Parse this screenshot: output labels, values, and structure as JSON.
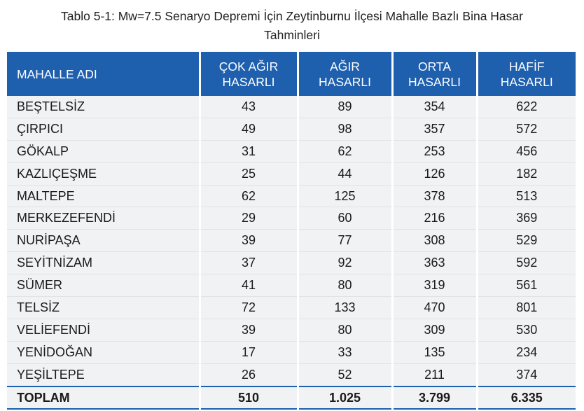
{
  "caption": {
    "line1": "Tablo 5-1: Mw=7.5 Senaryo Depremi İçin Zeytinburnu İlçesi Mahalle Bazlı Bina Hasar",
    "line2": "Tahminleri"
  },
  "table": {
    "headers": [
      [
        "MAHALLE ADI"
      ],
      [
        "ÇOK AĞIR",
        "HASARLI"
      ],
      [
        "AĞIR",
        "HASARLI"
      ],
      [
        "ORTA",
        "HASARLI"
      ],
      [
        "HAFİF",
        "HASARLI"
      ]
    ],
    "rows": [
      [
        "BEŞTELSİZ",
        "43",
        "89",
        "354",
        "622"
      ],
      [
        "ÇIRPICI",
        "49",
        "98",
        "357",
        "572"
      ],
      [
        "GÖKALP",
        "31",
        "62",
        "253",
        "456"
      ],
      [
        "KAZLIÇEŞME",
        "25",
        "44",
        "126",
        "182"
      ],
      [
        "MALTEPE",
        "62",
        "125",
        "378",
        "513"
      ],
      [
        "MERKEZEFENDİ",
        "29",
        "60",
        "216",
        "369"
      ],
      [
        "NURİPAŞA",
        "39",
        "77",
        "308",
        "529"
      ],
      [
        "SEYİTNİZAM",
        "37",
        "92",
        "363",
        "592"
      ],
      [
        "SÜMER",
        "41",
        "80",
        "319",
        "561"
      ],
      [
        "TELSİZ",
        "72",
        "133",
        "470",
        "801"
      ],
      [
        "VELİEFENDİ",
        "39",
        "80",
        "309",
        "530"
      ],
      [
        "YENİDOĞAN",
        "17",
        "33",
        "135",
        "234"
      ],
      [
        "YEŞİLTEPE",
        "26",
        "52",
        "211",
        "374"
      ]
    ],
    "total": [
      "TOPLAM",
      "510",
      "1.025",
      "3.799",
      "6.335"
    ]
  },
  "colors": {
    "header_bg": "#1e5fae",
    "row_bg": "#f1f2f3"
  }
}
